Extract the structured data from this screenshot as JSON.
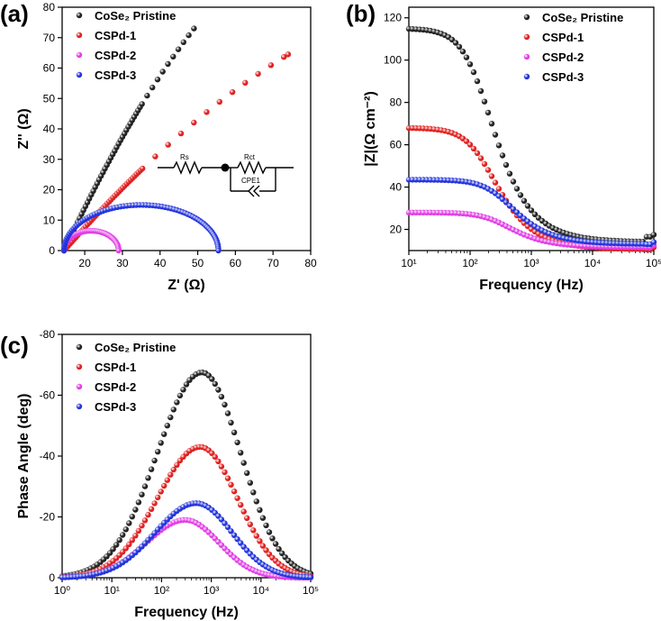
{
  "colors": {
    "black": "#222222",
    "red": "#e02020",
    "magenta": "#e23ce6",
    "blue": "#2233dd"
  },
  "chart_data": [
    {
      "id": "a",
      "type": "scatter",
      "panel_label": "(a)",
      "xlabel": "Z' (Ω)",
      "ylabel": "Z'' (Ω)",
      "xlim": [
        14,
        80
      ],
      "ylim": [
        0,
        80
      ],
      "xticks": [
        20,
        30,
        40,
        50,
        60,
        70,
        80
      ],
      "yticks": [
        0,
        10,
        20,
        30,
        40,
        50,
        60,
        70,
        80
      ],
      "legend_placement": "top-left",
      "series": [
        {
          "name": "CoSe₂ Pristine",
          "color": "black",
          "shape": "line",
          "from": [
            14.5,
            0
          ],
          "to": [
            49,
            73
          ],
          "curve": 0.25,
          "n": 30,
          "dense_until": 0.6,
          "dense_n": 40
        },
        {
          "name": "CSPd-1",
          "color": "red",
          "shape": "line",
          "from": [
            14.5,
            0
          ],
          "to": [
            74,
            64.5
          ],
          "curve": 0.3,
          "n": 34,
          "dense_until": 0.35,
          "dense_n": 40
        },
        {
          "name": "CSPd-2",
          "color": "magenta",
          "shape": "arc",
          "x0": 14.5,
          "x1": 29,
          "peak": 6.5,
          "n": 45
        },
        {
          "name": "CSPd-3",
          "color": "blue",
          "shape": "arc",
          "x0": 14.5,
          "x1": 55.5,
          "peak": 15,
          "n": 75
        }
      ],
      "inset_circuit": {
        "labels": [
          "Rs",
          "Rct",
          "CPE1"
        ]
      }
    },
    {
      "id": "b",
      "type": "scatter",
      "panel_label": "(b)",
      "xlabel": "Frequency (Hz)",
      "ylabel": "|Z|(Ω cm⁻²)",
      "xscale": "log",
      "xlim": [
        10,
        100000
      ],
      "ylim": [
        10,
        125
      ],
      "xticks": [
        10,
        100,
        1000,
        10000,
        100000
      ],
      "xtick_labels": [
        "10¹",
        "10²",
        "10³",
        "10⁴",
        "10⁵"
      ],
      "yticks": [
        20,
        40,
        60,
        80,
        100,
        120
      ],
      "legend_placement": "top-right",
      "series": [
        {
          "name": "CoSe₂ Pristine",
          "color": "black",
          "high": 115,
          "low": 14,
          "fc": 150,
          "tail": 16.5
        },
        {
          "name": "CSPd-1",
          "color": "red",
          "high": 68,
          "low": 10.5,
          "fc": 170,
          "tail": 10.5
        },
        {
          "name": "CSPd-2",
          "color": "magenta",
          "high": 28,
          "low": 11.5,
          "fc": 300,
          "tail": 11.5
        },
        {
          "name": "CSPd-3",
          "color": "blue",
          "high": 43.5,
          "low": 13,
          "fc": 330,
          "tail": 13
        }
      ]
    },
    {
      "id": "c",
      "type": "scatter",
      "panel_label": "(c)",
      "xlabel": "Frequency (Hz)",
      "ylabel": "Phase Angle (deg)",
      "xscale": "log",
      "xlim": [
        1,
        100000
      ],
      "ylim": [
        0,
        -80
      ],
      "xticks": [
        1,
        10,
        100,
        1000,
        10000,
        100000
      ],
      "xtick_labels": [
        "10⁰",
        "10¹",
        "10²",
        "10³",
        "10⁴",
        "10⁵"
      ],
      "yticks": [
        0,
        -20,
        -40,
        -60,
        -80
      ],
      "legend_placement": "top-left",
      "series": [
        {
          "name": "CoSe₂ Pristine",
          "color": "black",
          "peak": -67.5,
          "fpeak": 650,
          "width": 0.78
        },
        {
          "name": "CSPd-1",
          "color": "red",
          "peak": -43,
          "fpeak": 600,
          "width": 0.75
        },
        {
          "name": "CSPd-2",
          "color": "magenta",
          "peak": -19,
          "fpeak": 300,
          "width": 0.68
        },
        {
          "name": "CSPd-3",
          "color": "blue",
          "peak": -24.5,
          "fpeak": 500,
          "width": 0.72
        }
      ]
    }
  ]
}
